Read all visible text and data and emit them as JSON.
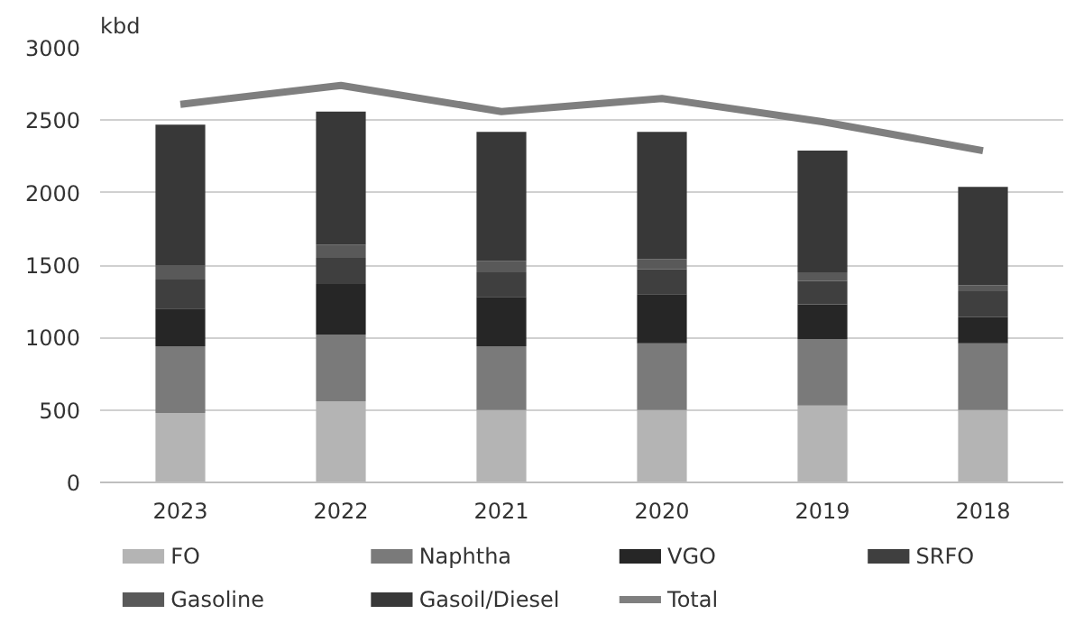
{
  "chart_data": {
    "type": "bar",
    "stacked": true,
    "ylabel": "kbd",
    "categories": [
      "2023",
      "2022",
      "2021",
      "2020",
      "2019",
      "2018"
    ],
    "series": [
      {
        "name": "FO",
        "color": "#b4b4b4",
        "values": [
          480,
          560,
          500,
          500,
          530,
          500
        ]
      },
      {
        "name": "Naphtha",
        "color": "#7a7a7a",
        "values": [
          460,
          460,
          440,
          460,
          460,
          460
        ]
      },
      {
        "name": "VGO",
        "color": "#262626",
        "values": [
          260,
          350,
          340,
          340,
          240,
          180
        ]
      },
      {
        "name": "SRFO",
        "color": "#3f3f3f",
        "values": [
          200,
          180,
          170,
          170,
          160,
          180
        ]
      },
      {
        "name": "Gasoline",
        "color": "#595959",
        "values": [
          100,
          90,
          80,
          70,
          60,
          40
        ]
      },
      {
        "name": "Gasoil/Diesel",
        "color": "#383838",
        "values": [
          970,
          920,
          890,
          880,
          840,
          680
        ]
      },
      {
        "name": "Total",
        "type": "line",
        "color": "#7f7f7f",
        "values": [
          2610,
          2740,
          2560,
          2650,
          2490,
          2290
        ]
      }
    ],
    "ylim": [
      0,
      3000
    ],
    "yticks": [
      0,
      500,
      1000,
      1500,
      2000,
      2500,
      3000
    ],
    "grid": "y",
    "legend": "bottom"
  }
}
